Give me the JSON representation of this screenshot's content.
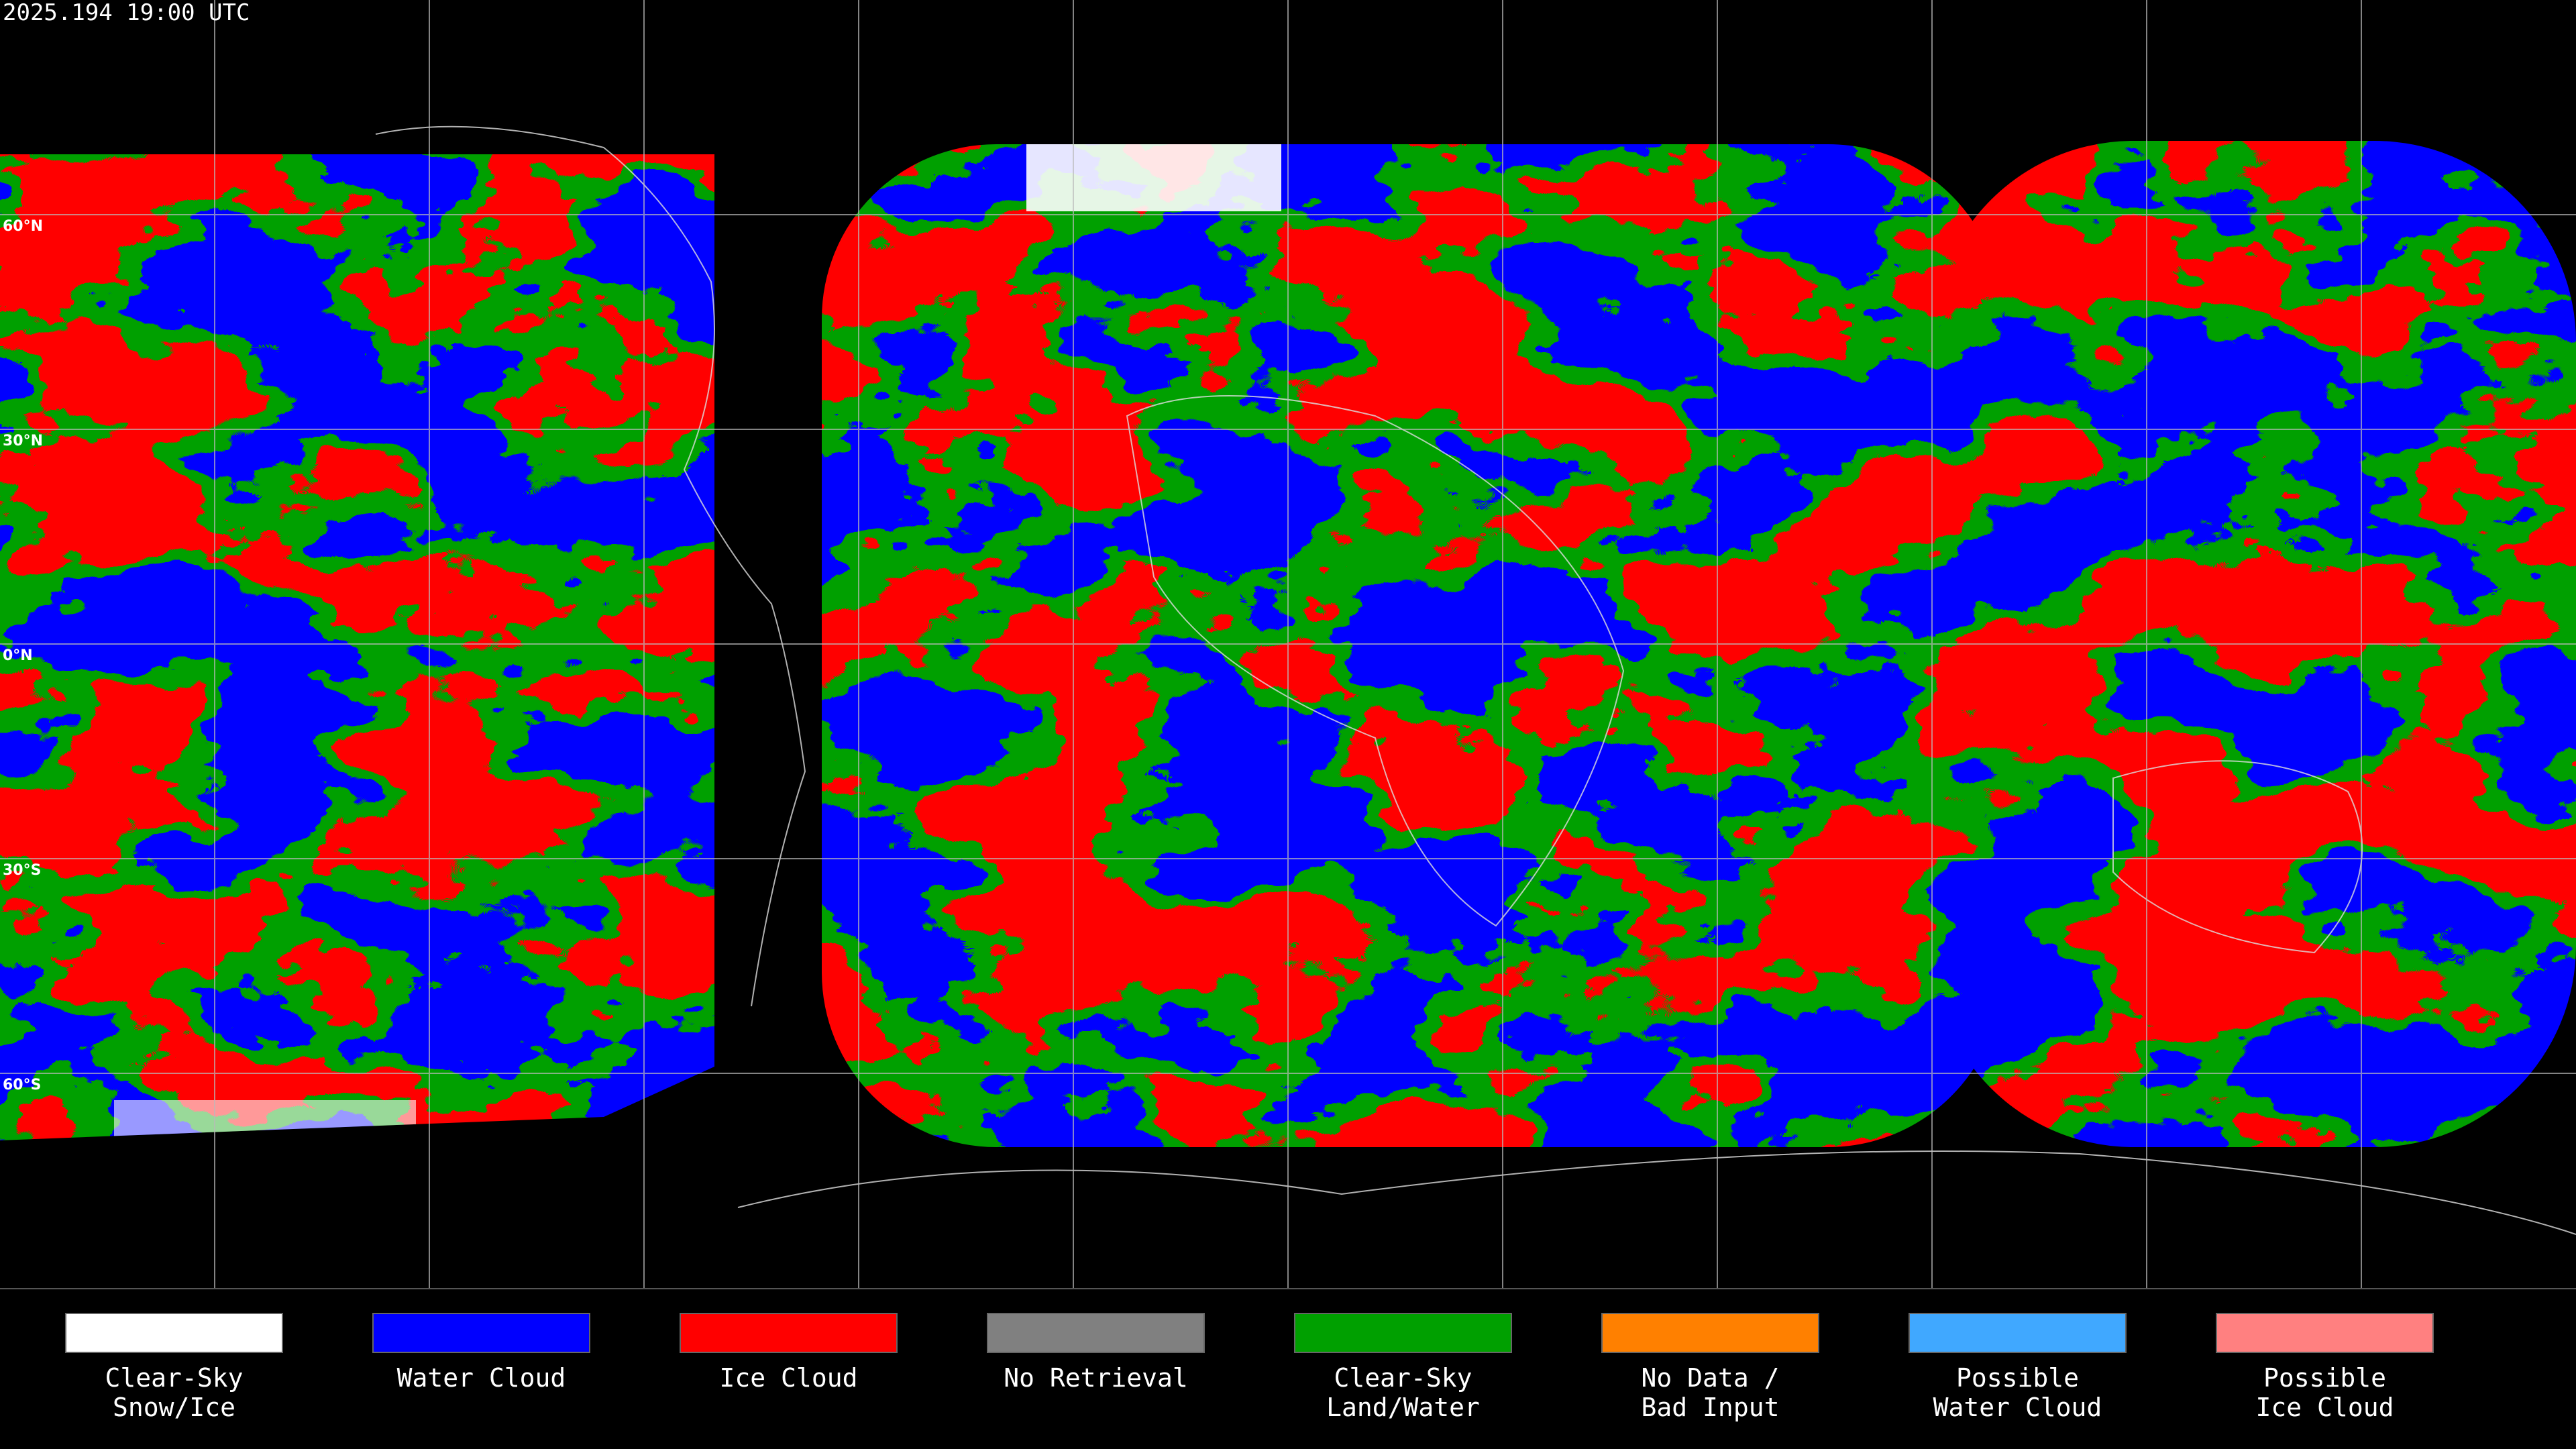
{
  "header": {
    "timestamp": "2025.194 19:00 UTC"
  },
  "map": {
    "latitude_labels": [
      "60°N",
      "30°N",
      "0°N",
      "30°S",
      "60°S"
    ]
  },
  "legend": {
    "items": [
      {
        "label": [
          "Clear-Sky",
          "Snow/Ice"
        ],
        "color": "#ffffff"
      },
      {
        "label": [
          "Water Cloud"
        ],
        "color": "#0000ff"
      },
      {
        "label": [
          "Ice Cloud"
        ],
        "color": "#ff0000"
      },
      {
        "label": [
          "No Retrieval"
        ],
        "color": "#808080"
      },
      {
        "label": [
          "Clear-Sky",
          "Land/Water"
        ],
        "color": "#00a000"
      },
      {
        "label": [
          "No Data /",
          "Bad Input"
        ],
        "color": "#ff8000"
      },
      {
        "label": [
          "Possible",
          "Water Cloud"
        ],
        "color": "#40a8ff"
      },
      {
        "label": [
          "Possible",
          "Ice Cloud"
        ],
        "color": "#ff8080"
      }
    ]
  }
}
